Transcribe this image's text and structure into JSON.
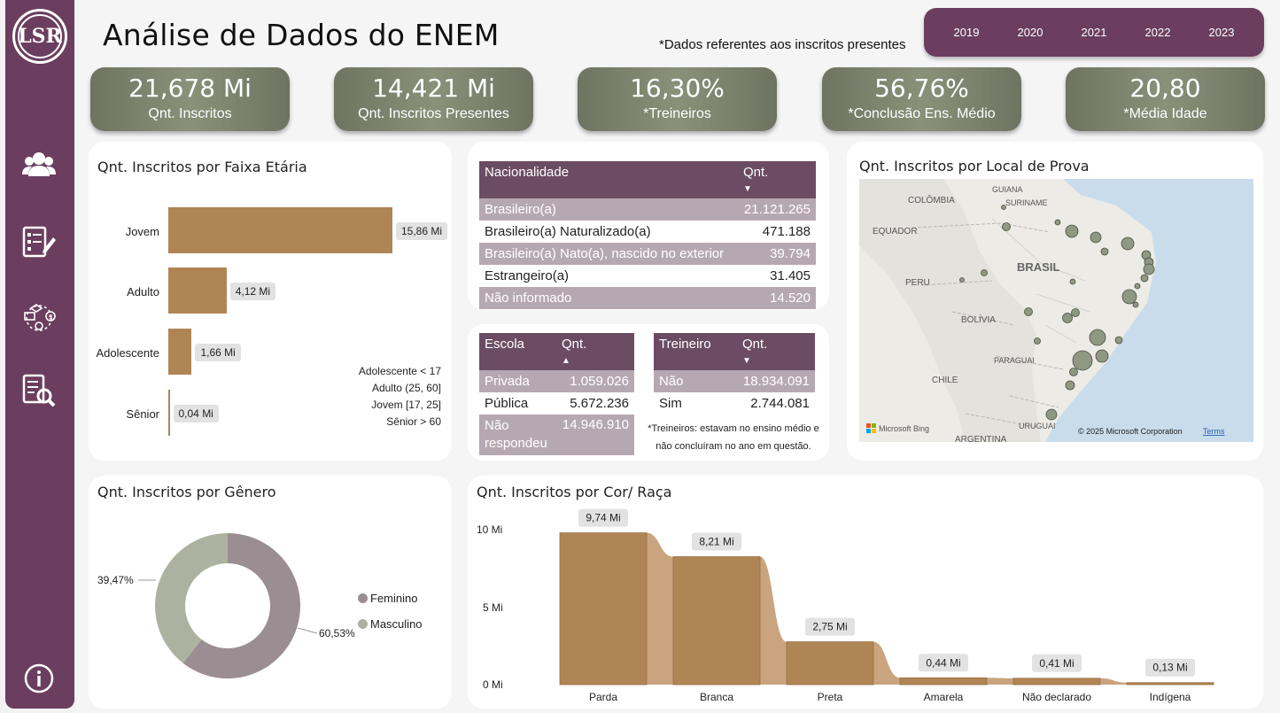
{
  "header": {
    "title": "Análise de Dados do ENEM",
    "subtitle": "*Dados referentes aos inscritos presentes",
    "logo_text": "LSR"
  },
  "years": [
    "2019",
    "2020",
    "2021",
    "2022",
    "2023"
  ],
  "kpis": [
    {
      "value": "21,678 Mi",
      "label": "Qnt. Inscritos"
    },
    {
      "value": "14,421 Mi",
      "label": "Qnt. Inscritos Presentes"
    },
    {
      "value": "16,30%",
      "label": "*Treineiros"
    },
    {
      "value": "56,76%",
      "label": "*Conclusão Ens. Médio"
    },
    {
      "value": "20,80",
      "label": "*Média Idade"
    }
  ],
  "age_chart": {
    "title": "Qnt. Inscritos por Faixa Etária",
    "notes": [
      "Adolescente < 17",
      "Adulto (25, 60]",
      "Jovem [17, 25]",
      "Sênior > 60"
    ]
  },
  "nationality_table": {
    "headers": [
      "Nacionalidade",
      "Qnt."
    ],
    "rows": [
      [
        "Brasileiro(a)",
        "21.121.265"
      ],
      [
        "Brasileiro(a) Naturalizado(a)",
        "471.188"
      ],
      [
        "Brasileiro(a) Nato(a), nascido no exterior",
        "39.794"
      ],
      [
        "Estrangeiro(a)",
        "31.405"
      ],
      [
        "Não informado",
        "14.520"
      ]
    ]
  },
  "school_table": {
    "headers": [
      "Escola",
      "Qnt."
    ],
    "rows": [
      [
        "Privada",
        "1.059.026"
      ],
      [
        "Pública",
        "5.672.236"
      ],
      [
        "Não respondeu",
        "14.946.910"
      ]
    ]
  },
  "trainee_table": {
    "headers": [
      "Treineiro",
      "Qnt."
    ],
    "rows": [
      [
        "Não",
        "18.934.091"
      ],
      [
        "Sim",
        "2.744.081"
      ]
    ],
    "note_1": "*Treineiros: estavam no ensino médio e",
    "note_2": "não concluíram no ano em questão."
  },
  "map": {
    "title": "Qnt. Inscritos por Local de Prova",
    "labels": {
      "colombia": "COLÔMBIA",
      "guiana": "GUIANA",
      "suriname": "SURINAME",
      "equador": "EQUADOR",
      "peru": "PERU",
      "brasil": "BRASIL",
      "bolivia": "BOLÍVIA",
      "paraguai": "PARAGUAI",
      "chile": "CHILE",
      "uruguai": "URUGUAI",
      "argentina": "ARGENTINA"
    },
    "provider": "Microsoft Bing",
    "copyright": "© 2025 Microsoft Corporation",
    "terms": "Terms"
  },
  "gender_chart": {
    "title": "Qnt. Inscritos por Gênero",
    "legend": [
      "Feminino",
      "Masculino"
    ],
    "label_fem": "60,53%",
    "label_masc": "39,47%"
  },
  "race_chart": {
    "title": "Qnt. Inscritos por Cor/ Raça",
    "y_ticks": [
      "10 Mi",
      "5 Mi",
      "0 Mi"
    ]
  },
  "colors": {
    "purple": "#6b3e5f",
    "bar": "#b08556",
    "kpi": "#7b806b",
    "fem": "#9b8e92",
    "masc": "#adb2a0"
  },
  "chart_data": [
    {
      "type": "bar",
      "orientation": "horizontal",
      "categories": [
        "Jovem",
        "Adulto",
        "Adolescente",
        "Sênior"
      ],
      "values": [
        15.86,
        4.12,
        1.66,
        0.04
      ],
      "labels": [
        "15,86 Mi",
        "4,12 Mi",
        "1,66 Mi",
        "0,04 Mi"
      ],
      "title": "Qnt. Inscritos por Faixa Etária"
    },
    {
      "type": "pie",
      "categories": [
        "Feminino",
        "Masculino"
      ],
      "values": [
        60.53,
        39.47
      ],
      "title": "Qnt. Inscritos por Gênero"
    },
    {
      "type": "bar",
      "categories": [
        "Parda",
        "Branca",
        "Preta",
        "Amarela",
        "Não declarado",
        "Indígena"
      ],
      "values": [
        9.74,
        8.21,
        2.75,
        0.44,
        0.41,
        0.13
      ],
      "labels": [
        "9,74 Mi",
        "8,21 Mi",
        "2,75 Mi",
        "0,44 Mi",
        "0,41 Mi",
        "0,13 Mi"
      ],
      "ylim": [
        0,
        10
      ],
      "title": "Qnt. Inscritos por Cor/ Raça"
    }
  ]
}
